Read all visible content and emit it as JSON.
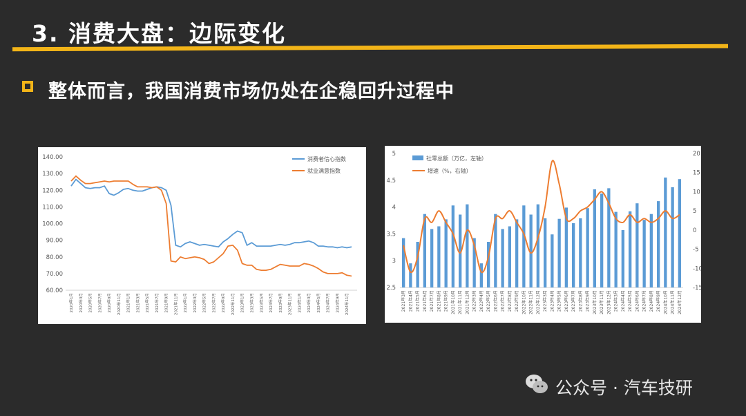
{
  "header": {
    "title": "3. 消费大盘：边际变化"
  },
  "bullet": {
    "text": "整体而言，我国消费市场仍处在企稳回升过程中"
  },
  "watermark": {
    "text": "公众号 · 汽车技研",
    "icon": "wechat-icon"
  },
  "colors": {
    "accent": "#f2b418",
    "series_blue": "#5b9bd5",
    "series_orange": "#ed7d31",
    "background": "#2b2b2b"
  },
  "chart_data": [
    {
      "type": "line",
      "title": "",
      "xlabel": "",
      "ylabel": "",
      "ylim": [
        60,
        140
      ],
      "yticks": [
        "60.00",
        "70.00",
        "80.00",
        "90.00",
        "100.00",
        "110.00",
        "120.00",
        "130.00",
        "140.00"
      ],
      "legend": "top-right",
      "grid": false,
      "x": [
        "2020年1月",
        "2020年2月",
        "2020年3月",
        "2020年4月",
        "2020年5月",
        "2020年6月",
        "2020年7月",
        "2020年8月",
        "2020年9月",
        "2020年10月",
        "2020年11月",
        "2020年12月",
        "2021年1月",
        "2021年2月",
        "2021年3月",
        "2021年4月",
        "2021年5月",
        "2021年6月",
        "2021年7月",
        "2021年8月",
        "2021年9月",
        "2021年10月",
        "2021年11月",
        "2021年12月",
        "2022年1月",
        "2022年2月",
        "2022年3月",
        "2022年4月",
        "2022年5月",
        "2022年6月",
        "2022年7月",
        "2022年8月",
        "2022年9月",
        "2022年10月",
        "2022年11月",
        "2022年12月",
        "2023年1月",
        "2023年2月",
        "2023年3月",
        "2023年4月",
        "2023年5月",
        "2023年6月",
        "2023年7月",
        "2023年8月",
        "2023年9月",
        "2023年10月",
        "2023年11月",
        "2023年12月",
        "2024年1月",
        "2024年2月",
        "2024年3月",
        "2024年4月",
        "2024年5月",
        "2024年6月",
        "2024年7月",
        "2024年8月",
        "2024年9月",
        "2024年10月",
        "2024年11月",
        "2024年12月"
      ],
      "x_ticks": [
        "2020年1月",
        "2020年3月",
        "2020年5月",
        "2020年7月",
        "2020年9月",
        "2020年11月",
        "2021年1月",
        "2021年3月",
        "2021年5月",
        "2021年7月",
        "2021年9月",
        "2021年11月",
        "2022年1月",
        "2022年3月",
        "2022年5月",
        "2022年7月",
        "2022年9月",
        "2022年11月",
        "2023年1月",
        "2023年3月",
        "2023年5月",
        "2023年7月",
        "2023年9月",
        "2023年11月",
        "2024年1月",
        "2024年3月",
        "2024年5月",
        "2024年7月",
        "2024年9月",
        "2024年11月"
      ],
      "series": [
        {
          "name": "消费者信心指数",
          "color": "#5b9bd5",
          "values": [
            122.5,
            126.5,
            124,
            121.5,
            121,
            121.5,
            121.5,
            122.5,
            118,
            117,
            118.5,
            120.5,
            121,
            120,
            119.5,
            119.5,
            120.5,
            121.5,
            122,
            121.5,
            120,
            111,
            87,
            86,
            88,
            89,
            88,
            87,
            87.5,
            87,
            86.5,
            86,
            89,
            91,
            93.5,
            95.5,
            94.5,
            87,
            88.5,
            86.5,
            86.5,
            86.5,
            86.5,
            87,
            87.5,
            87,
            87.5,
            88.5,
            88.5,
            89,
            89.5,
            88.5,
            86.5,
            86.5,
            86,
            86,
            85.5,
            86,
            85.5,
            86
          ]
        },
        {
          "name": "就业满意指数",
          "color": "#ed7d31",
          "values": [
            125.5,
            128.5,
            126,
            124,
            124,
            124.5,
            125,
            125.5,
            125,
            125.5,
            125.5,
            125.5,
            125.5,
            123.5,
            122,
            122,
            122,
            121.5,
            122,
            120,
            112,
            77.5,
            77,
            80,
            79,
            79.5,
            80,
            79.5,
            78.5,
            76,
            77,
            79.5,
            82,
            86.5,
            87,
            84,
            76,
            75,
            75,
            72.5,
            72,
            72,
            72.5,
            74,
            75.5,
            75,
            74.5,
            74.5,
            74.5,
            76,
            75.5,
            74.5,
            73,
            71,
            70,
            70,
            70,
            70.5,
            69,
            68.5
          ]
        }
      ]
    },
    {
      "type": "bar",
      "title": "",
      "xlabel": "",
      "ylabel": "",
      "ylim": [
        2.5,
        5
      ],
      "y2lim": [
        -15,
        20
      ],
      "yticks": [
        "2.5",
        "3",
        "3.5",
        "4",
        "4.5",
        "5"
      ],
      "y2ticks": [
        "-15",
        "-10",
        "-5",
        "0",
        "5",
        "10",
        "15",
        "20"
      ],
      "legend": "top-left",
      "grid": false,
      "categories": [
        "2021年3月",
        "2021年4月",
        "2021年5月",
        "2021年6月",
        "2021年7月",
        "2021年8月",
        "2021年9月",
        "2021年10月",
        "2021年11月",
        "2021年12月",
        "2022年3月",
        "2022年4月",
        "2022年5月",
        "2022年6月",
        "2022年7月",
        "2022年8月",
        "2022年9月",
        "2022年10月",
        "2022年11月",
        "2022年12月",
        "2023年3月",
        "2023年4月",
        "2023年5月",
        "2023年6月",
        "2023年7月",
        "2023年8月",
        "2023年9月",
        "2023年10月",
        "2023年11月",
        "2023年12月",
        "2024年3月",
        "2024年4月",
        "2024年5月",
        "2024年6月",
        "2024年7月",
        "2024年8月",
        "2024年9月",
        "2024年10月",
        "2024年11月",
        "2024年12月"
      ],
      "x_ticks": [
        "2021年3月",
        "2021年4月",
        "2021年5月",
        "2021年6月",
        "2021年7月",
        "2021年8月",
        "2021年9月",
        "2021年10月",
        "2021年11月",
        "2021年12月",
        "2022年3月",
        "2022年4月",
        "2022年5月",
        "2022年6月",
        "2022年7月",
        "2022年8月",
        "2022年9月",
        "2022年10月",
        "2022年11月",
        "2022年12月",
        "2023年3月",
        "2023年4月",
        "2023年5月",
        "2023年6月",
        "2023年7月",
        "2023年8月",
        "2023年9月",
        "2023年10月",
        "2023年11月",
        "2023年12月",
        "2024年3月",
        "2024年4月",
        "2024年5月",
        "2024年6月",
        "2024年7月",
        "2024年8月",
        "2024年9月",
        "2024年10月",
        "2024年11月",
        "2024年12月"
      ],
      "series": [
        {
          "name": "社零总额（万亿，左轴）",
          "axis": "left",
          "kind": "bar",
          "color": "#5b9bd5",
          "values": [
            3.42,
            2.95,
            3.35,
            3.87,
            3.59,
            3.64,
            3.77,
            4.03,
            3.86,
            4.05,
            3.42,
            2.95,
            3.35,
            3.87,
            3.59,
            3.64,
            3.77,
            4.03,
            3.86,
            4.05,
            3.79,
            3.49,
            3.78,
            3.99,
            3.7,
            3.79,
            3.98,
            4.33,
            4.25,
            4.35,
            3.91,
            3.57,
            3.92,
            4.07,
            3.76,
            3.87,
            4.11,
            4.55,
            4.37,
            4.52
          ]
        },
        {
          "name": "增速（%，右轴）",
          "axis": "right",
          "kind": "line",
          "color": "#ed7d31",
          "values": [
            -4,
            -11,
            -7,
            3,
            2,
            5,
            2,
            -1,
            -6,
            0,
            -4,
            -11,
            -7,
            3,
            3,
            5,
            2,
            -1,
            -6,
            -2,
            6,
            18,
            12,
            3,
            3,
            5,
            6,
            8,
            10,
            7,
            3,
            2,
            4,
            2,
            3,
            2,
            3,
            5,
            3,
            4
          ]
        }
      ]
    }
  ]
}
